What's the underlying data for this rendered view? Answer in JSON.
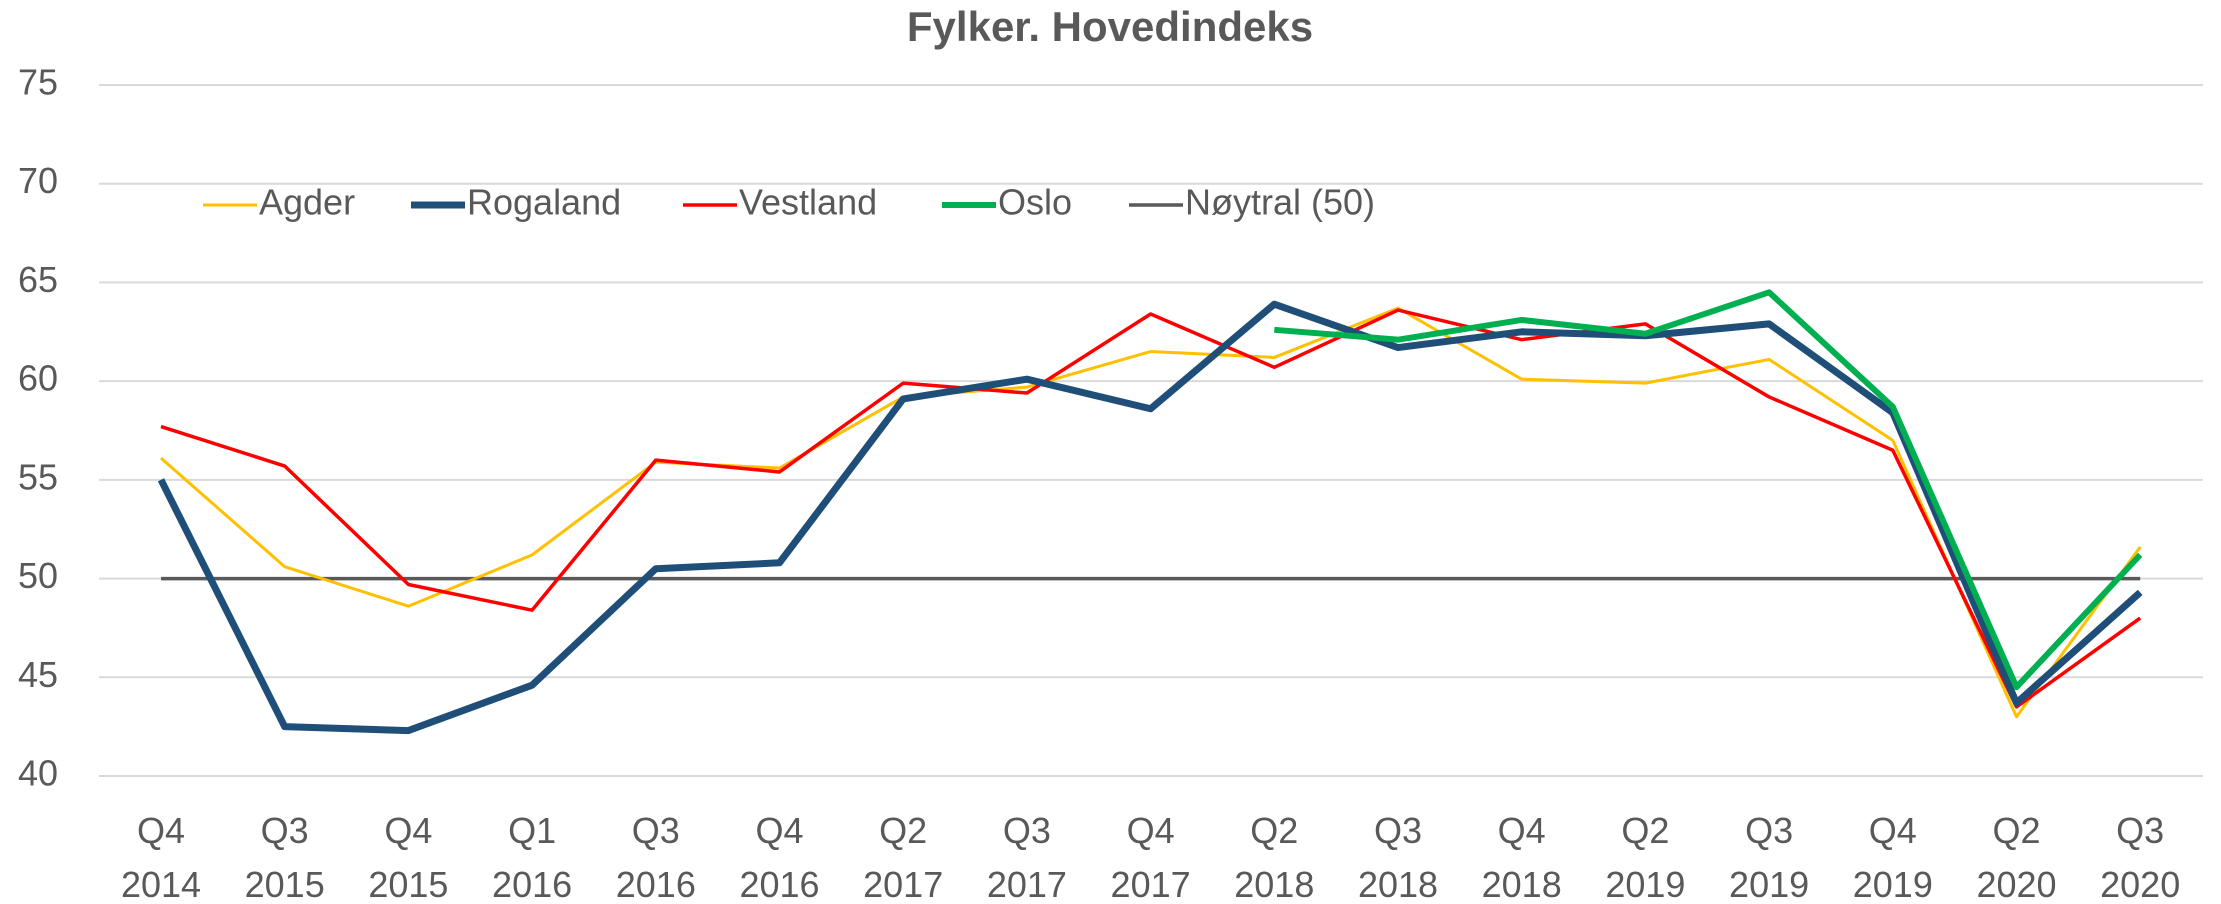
{
  "chart_data": {
    "type": "line",
    "title": "Fylker. Hovedindeks",
    "categories": [
      "Q4 2014",
      "Q3 2015",
      "Q4 2015",
      "Q1 2016",
      "Q3 2016",
      "Q4 2016",
      "Q2 2017",
      "Q3 2017",
      "Q4 2017",
      "Q2 2018",
      "Q3 2018",
      "Q4 2018",
      "Q2 2019",
      "Q3 2019",
      "Q4 2019",
      "Q2 2020",
      "Q3 2020"
    ],
    "series": [
      {
        "name": "Agder",
        "color": "#FFC000",
        "values": [
          56.1,
          50.6,
          48.6,
          51.2,
          55.9,
          55.6,
          59.2,
          59.7,
          61.5,
          61.2,
          63.7,
          60.1,
          59.9,
          61.1,
          57.0,
          43.0,
          51.6
        ]
      },
      {
        "name": "Rogaland",
        "color": "#1F4E79",
        "values": [
          55.0,
          42.5,
          42.3,
          44.6,
          50.5,
          50.8,
          59.1,
          60.1,
          58.6,
          63.9,
          61.7,
          62.5,
          62.3,
          62.9,
          58.4,
          43.7,
          49.3
        ]
      },
      {
        "name": "Vestland",
        "color": "#FF0000",
        "values": [
          57.7,
          55.7,
          49.7,
          48.4,
          56.0,
          55.4,
          59.9,
          59.4,
          63.4,
          60.7,
          63.6,
          62.1,
          62.9,
          59.2,
          56.5,
          43.5,
          48.0
        ]
      },
      {
        "name": "Oslo",
        "color": "#00B050",
        "values": [
          null,
          null,
          null,
          null,
          null,
          null,
          null,
          null,
          null,
          62.6,
          62.1,
          63.1,
          62.4,
          64.5,
          58.7,
          44.5,
          51.2
        ]
      },
      {
        "name": "Nøytral (50)",
        "color": "#595959",
        "values": [
          50,
          50,
          50,
          50,
          50,
          50,
          50,
          50,
          50,
          50,
          50,
          50,
          50,
          50,
          50,
          50,
          50
        ]
      }
    ],
    "ylim": [
      40,
      75
    ],
    "yticks": [
      40,
      45,
      50,
      55,
      60,
      65,
      70,
      75
    ],
    "grid": true,
    "legend": "top-left"
  }
}
